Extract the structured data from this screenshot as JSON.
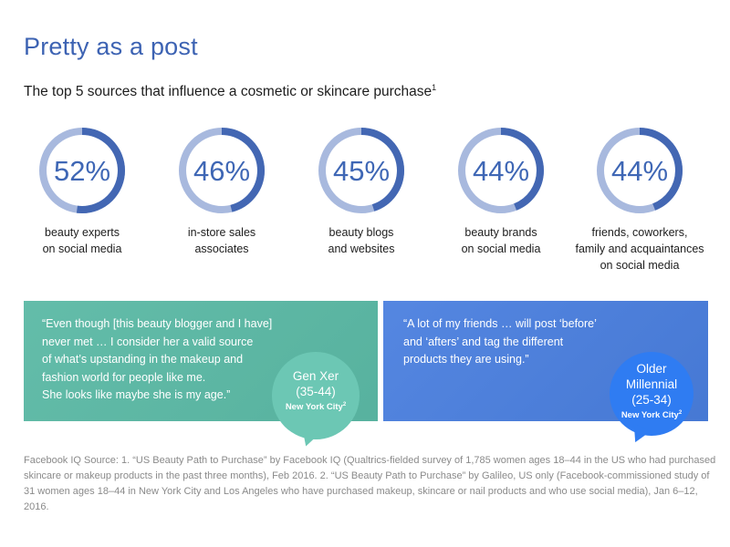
{
  "title": "Pretty as a post",
  "subtitle": "The top 5 sources that influence a cosmetic or skincare purchase",
  "subtitle_ref": "1",
  "colors": {
    "title": "#3d63b3",
    "ring_track": "#a8b9de",
    "ring_fill": "#4367b3",
    "panel_left": "#5bb9a5",
    "panel_right": "#4a7fdf"
  },
  "chart_data": {
    "type": "donut",
    "title": "The top 5 sources that influence a cosmetic or skincare purchase",
    "unit": "%",
    "items": [
      {
        "label": "beauty experts\non social media",
        "value": 52,
        "display": "52%"
      },
      {
        "label": "in-store sales\nassociates",
        "value": 46,
        "display": "46%"
      },
      {
        "label": "beauty blogs\nand websites",
        "value": 45,
        "display": "45%"
      },
      {
        "label": "beauty brands\non social media",
        "value": 44,
        "display": "44%"
      },
      {
        "label": "friends, coworkers,\nfamily and acquaintances\non social media",
        "value": 44,
        "display": "44%"
      }
    ]
  },
  "quotes": [
    {
      "text": "“Even though [this beauty blogger and I have]\n  never met … I consider her a valid source\n  of what’s upstanding in the makeup and\n  fashion world for people like me.\n  She looks like maybe she is my age.”",
      "persona": "Gen Xer\n(35-44)",
      "location": "New York City",
      "location_ref": "2"
    },
    {
      "text": "“A lot of my friends … will post ‘before’\n  and ‘afters’ and tag the different\n  products they are using.”",
      "persona": "Older\nMillennial\n(25-34)",
      "location": "New York City",
      "location_ref": "2"
    }
  ],
  "footnote": "Facebook IQ Source: 1. “US Beauty Path to Purchase” by Facebook IQ (Qualtrics-fielded survey of 1,785 women ages 18–44 in the US who had purchased skincare or makeup products in the past three months), Feb 2016. 2. “US Beauty Path to Purchase” by Galileo, US only (Facebook-commissioned study of 31 women ages 18–44 in New York City and Los Angeles who have purchased makeup, skincare or nail products and who use social media), Jan 6–12, 2016."
}
